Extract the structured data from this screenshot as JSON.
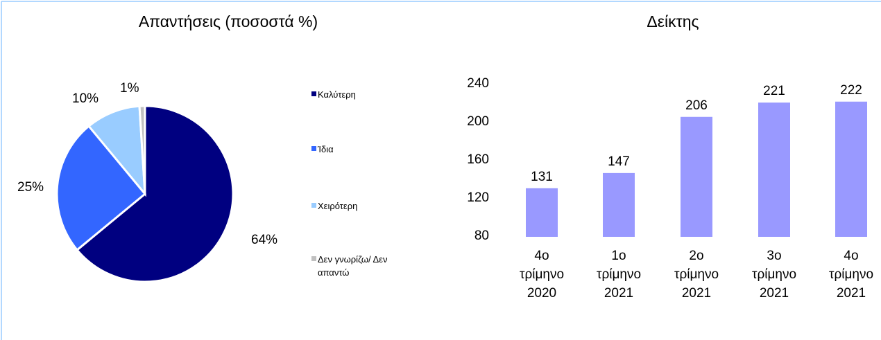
{
  "chart_data": [
    {
      "type": "pie",
      "title": "Απαντήσεις (ποσοστά %)",
      "categories": [
        "Καλύτερη",
        "Ίδια",
        "Χειρότερη",
        "Δεν γνωρίζω/ Δεν απαντώ"
      ],
      "values": [
        64,
        25,
        10,
        1
      ],
      "value_labels": [
        "64%",
        "25%",
        "10%",
        "1%"
      ],
      "colors": [
        "#000080",
        "#3366ff",
        "#99ccff",
        "#c0c0c0"
      ],
      "legend": "right"
    },
    {
      "type": "bar",
      "title": "Δείκτης",
      "categories": [
        "4ο τρίμηνο 2020",
        "1ο τρίμηνο 2021",
        "2ο τρίμηνο 2021",
        "3ο τρίμηνο 2021",
        "4ο τρίμηνο 2021"
      ],
      "values": [
        131,
        147,
        206,
        221,
        222
      ],
      "color": "#9999ff",
      "ylim": [
        80,
        240
      ],
      "yticks": [
        80,
        120,
        160,
        200,
        240
      ],
      "grid": false
    }
  ]
}
